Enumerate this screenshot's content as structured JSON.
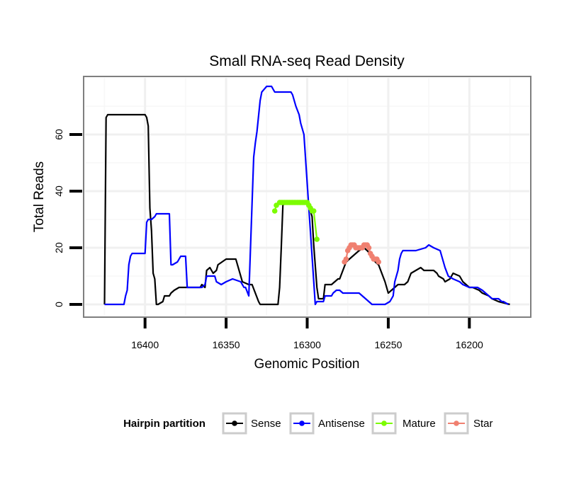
{
  "chart_data": {
    "type": "line",
    "title": "Small RNA-seq Read Density",
    "xlabel": "Genomic Position",
    "ylabel": "Total Reads",
    "x_reversed": true,
    "xlim": [
      16437,
      16163
    ],
    "ylim": [
      -4,
      80
    ],
    "x_ticks": [
      16400,
      16350,
      16300,
      16250,
      16200
    ],
    "y_ticks": [
      0,
      20,
      40,
      60
    ],
    "grid": true,
    "legend": {
      "title": "Hairpin partition",
      "position": "bottom",
      "entries": [
        "Sense",
        "Antisense",
        "Mature",
        "Star"
      ]
    },
    "series": [
      {
        "name": "Sense",
        "color": "#000000",
        "style": "line",
        "x": [
          16425,
          16424,
          16423,
          16421,
          16400,
          16399,
          16398,
          16397,
          16396,
          16395,
          16394,
          16393,
          16392,
          16389,
          16388,
          16385,
          16384,
          16382,
          16379,
          16372,
          16371,
          16366,
          16365,
          16363,
          16362,
          16360,
          16358,
          16356,
          16355,
          16350,
          16347,
          16344,
          16343,
          16340,
          16336,
          16334,
          16330,
          16329,
          16318,
          16317,
          16316,
          16315,
          16314,
          16300,
          16299,
          16298,
          16297,
          16296,
          16294,
          16293,
          16290,
          16289,
          16285,
          16283,
          16281,
          16280,
          16276,
          16270,
          16268,
          16265,
          16263,
          16260,
          16258,
          16256,
          16252,
          16250,
          16244,
          16243,
          16240,
          16238,
          16236,
          16233,
          16230,
          16228,
          16225,
          16222,
          16220,
          16219,
          16216,
          16215,
          16212,
          16210,
          16206,
          16204,
          16200,
          16198,
          16194,
          16192,
          16188,
          16186,
          16182,
          16175
        ],
        "y": [
          0,
          66,
          67,
          67,
          67,
          66,
          63,
          34,
          26,
          11,
          9,
          0,
          0,
          1,
          3,
          3,
          4,
          5,
          6,
          6,
          6,
          6,
          7,
          6,
          12,
          13,
          11,
          12,
          14,
          16,
          16,
          16,
          14,
          8,
          7,
          7,
          1,
          0,
          0,
          6,
          20,
          35,
          36,
          36,
          35,
          33,
          31,
          21,
          6,
          2,
          2,
          7,
          7,
          8,
          9,
          9,
          15,
          18,
          19,
          20,
          19,
          17,
          15,
          14,
          8,
          4,
          7,
          7,
          7,
          8,
          11,
          12,
          13,
          12,
          12,
          12,
          11,
          10,
          9,
          8,
          9,
          11,
          10,
          8,
          6,
          6,
          5,
          4,
          3,
          2,
          1,
          0
        ]
      },
      {
        "name": "Antisense",
        "color": "#0000ff",
        "style": "line",
        "x": [
          16425,
          16413,
          16412,
          16411,
          16410,
          16409,
          16408,
          16407,
          16400,
          16399,
          16398,
          16397,
          16396,
          16394,
          16393,
          16392,
          16391,
          16385,
          16384,
          16383,
          16380,
          16378,
          16375,
          16374,
          16366,
          16365,
          16363,
          16362,
          16357,
          16356,
          16353,
          16350,
          16346,
          16341,
          16339,
          16338,
          16336,
          16333,
          16332,
          16331,
          16329,
          16328,
          16325,
          16324,
          16322,
          16321,
          16320,
          16310,
          16309,
          16308,
          16307,
          16305,
          16304,
          16302,
          16295,
          16294,
          16290,
          16289,
          16285,
          16284,
          16282,
          16280,
          16278,
          16270,
          16268,
          16264,
          16260,
          16258,
          16254,
          16252,
          16249,
          16247,
          16246,
          16244,
          16243,
          16242,
          16241,
          16235,
          16233,
          16227,
          16225,
          16222,
          16218,
          16215,
          16213,
          16210,
          16206,
          16204,
          16200,
          16197,
          16195,
          16192,
          16190,
          16188,
          16186,
          16182,
          16180,
          16179,
          16176
        ],
        "y": [
          0,
          0,
          3,
          5,
          14,
          17,
          18,
          18,
          18,
          29,
          30,
          30,
          30,
          31,
          32,
          32,
          32,
          32,
          14,
          14,
          15,
          17,
          17,
          6,
          6,
          6,
          7,
          10,
          10,
          8,
          7,
          8,
          9,
          8,
          6,
          6,
          3,
          52,
          57,
          61,
          72,
          75,
          77,
          77,
          77,
          76,
          75,
          75,
          74,
          72,
          70,
          67,
          64,
          60,
          0,
          1,
          1,
          3,
          3,
          4,
          5,
          5,
          4,
          4,
          4,
          2,
          0,
          0,
          0,
          0,
          1,
          3,
          8,
          12,
          16,
          18,
          19,
          19,
          19,
          20,
          21,
          20,
          19,
          13,
          10,
          9,
          8,
          7,
          6,
          6,
          6,
          5,
          4,
          3,
          2,
          2,
          1,
          1,
          0
        ]
      },
      {
        "name": "Mature",
        "color": "#7cfc00",
        "style": "points",
        "x": [
          16320,
          16319,
          16317,
          16316,
          16315,
          16314,
          16313,
          16312,
          16311,
          16310,
          16309,
          16308,
          16307,
          16306,
          16305,
          16304,
          16303,
          16302,
          16301,
          16300,
          16299,
          16298,
          16297,
          16296,
          16294
        ],
        "y": [
          33,
          35,
          36,
          36,
          36,
          36,
          36,
          36,
          36,
          36,
          36,
          36,
          36,
          36,
          36,
          36,
          36,
          36,
          36,
          36,
          35,
          34,
          33,
          33,
          23
        ]
      },
      {
        "name": "Star",
        "color": "#f08070",
        "style": "points",
        "x": [
          16277,
          16276,
          16275,
          16274,
          16273,
          16272,
          16271,
          16270,
          16269,
          16268,
          16267,
          16266,
          16265,
          16264,
          16263,
          16262,
          16261,
          16260,
          16259,
          16258,
          16257,
          16256
        ],
        "y": [
          15,
          16,
          19,
          20,
          21,
          21,
          21,
          20,
          20,
          20,
          20,
          20,
          21,
          21,
          21,
          20,
          18,
          17,
          16,
          16,
          16,
          15
        ]
      }
    ]
  }
}
